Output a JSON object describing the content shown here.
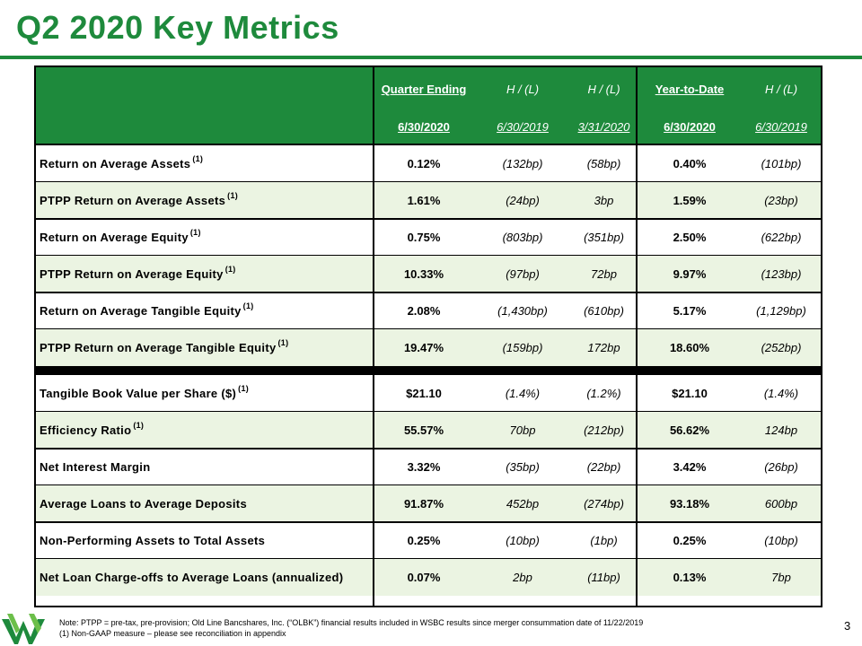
{
  "title": "Q2 2020 Key Metrics",
  "header": {
    "row1": [
      "Quarter Ending",
      "H / (L)",
      "H / (L)",
      "Year-to-Date",
      "H / (L)"
    ],
    "row2": [
      "6/30/2020",
      "6/30/2019",
      "3/31/2020",
      "6/30/2020",
      "6/30/2019"
    ]
  },
  "rows": [
    {
      "label": "Return on Average Assets",
      "sup": "(1)",
      "values": [
        "0.12%",
        "(132bp)",
        "(58bp)",
        "0.40%",
        "(101bp)"
      ]
    },
    {
      "label": "PTPP Return on Average Assets",
      "sup": "(1)",
      "values": [
        "1.61%",
        "(24bp)",
        "3bp",
        "1.59%",
        "(23bp)"
      ]
    },
    {
      "label": "Return on Average Equity",
      "sup": "(1)",
      "values": [
        "0.75%",
        "(803bp)",
        "(351bp)",
        "2.50%",
        "(622bp)"
      ]
    },
    {
      "label": "PTPP Return on Average Equity",
      "sup": "(1)",
      "values": [
        "10.33%",
        "(97bp)",
        "72bp",
        "9.97%",
        "(123bp)"
      ]
    },
    {
      "label": "Return on Average Tangible Equity",
      "sup": "(1)",
      "values": [
        "2.08%",
        "(1,430bp)",
        "(610bp)",
        "5.17%",
        "(1,129bp)"
      ]
    },
    {
      "label": "PTPP Return on Average Tangible Equity",
      "sup": "(1)",
      "values": [
        "19.47%",
        "(159bp)",
        "172bp",
        "18.60%",
        "(252bp)"
      ]
    },
    {
      "label": "Tangible Book Value per Share ($)",
      "sup": "(1)",
      "values": [
        "$21.10",
        "(1.4%)",
        "(1.2%)",
        "$21.10",
        "(1.4%)"
      ]
    },
    {
      "label": "Efficiency Ratio",
      "sup": "(1)",
      "values": [
        "55.57%",
        "70bp",
        "(212bp)",
        "56.62%",
        "124bp"
      ]
    },
    {
      "label": "Net Interest Margin",
      "sup": "",
      "values": [
        "3.32%",
        "(35bp)",
        "(22bp)",
        "3.42%",
        "(26bp)"
      ]
    },
    {
      "label": "Average Loans to Average Deposits",
      "sup": "",
      "values": [
        "91.87%",
        "452bp",
        "(274bp)",
        "93.18%",
        "600bp"
      ]
    },
    {
      "label": "Non-Performing Assets to Total Assets",
      "sup": "",
      "values": [
        "0.25%",
        "(10bp)",
        "(1bp)",
        "0.25%",
        "(10bp)"
      ]
    },
    {
      "label": "Net Loan Charge-offs to Average Loans (annualized)",
      "sup": "",
      "values": [
        "0.07%",
        "2bp",
        "(11bp)",
        "0.13%",
        "7bp"
      ]
    }
  ],
  "footnote": {
    "line1": "Note:   PTPP  = pre-tax, pre-provision; Old Line Bancshares, Inc. (“OLBK”) financial results included in WSBC results since merger consummation date of 11/22/2019",
    "line2": "(1) Non-GAAP measure – please see reconciliation in appendix"
  },
  "page_number": "3",
  "colors": {
    "brand_green": "#1e8a3c",
    "row_alt": "#ebf4e2"
  },
  "logo_icon": "wesbanco-logo-icon"
}
